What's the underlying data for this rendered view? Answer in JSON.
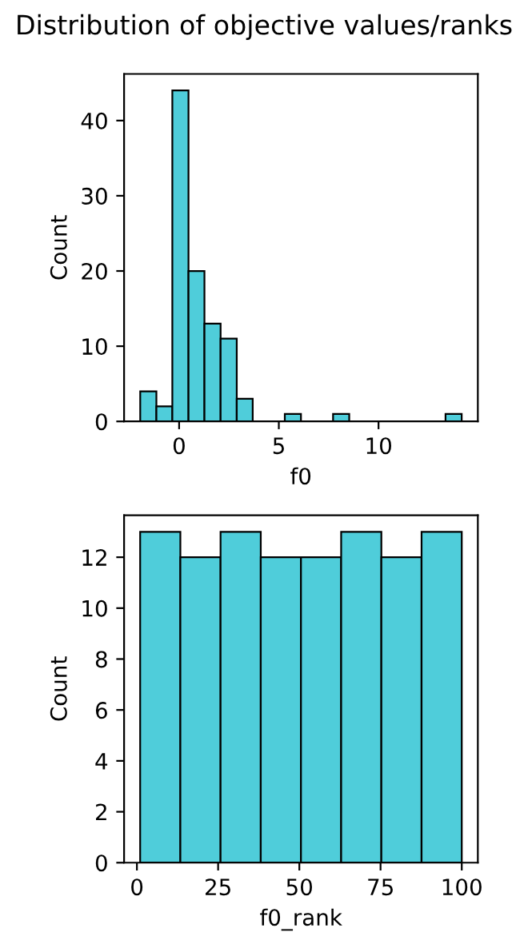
{
  "chart_data": [
    {
      "type": "histogram",
      "title": "Distribution of objective values/ranks",
      "xlabel": "f0",
      "ylabel": "Count",
      "color": "#4fcdda",
      "bins": [
        -1.95,
        -1.14,
        -0.34,
        0.47,
        1.27,
        2.08,
        2.89,
        3.69,
        4.5,
        5.3,
        6.11,
        6.92,
        7.72,
        8.53,
        9.33,
        10.14,
        10.95,
        11.75,
        12.56,
        13.36,
        14.17
      ],
      "values": [
        4,
        2,
        44,
        20,
        13,
        11,
        3,
        0,
        0,
        1,
        0,
        0,
        1,
        0,
        0,
        0,
        0,
        0,
        0,
        1
      ],
      "xlim": [
        -2.76,
        14.98
      ],
      "ylim": [
        0,
        46.2
      ],
      "xticks": [
        0,
        5,
        10
      ],
      "yticks": [
        0,
        10,
        20,
        30,
        40
      ],
      "grid": false,
      "legend": false
    },
    {
      "type": "histogram",
      "xlabel": "f0_rank",
      "ylabel": "Count",
      "color": "#4fcdda",
      "bins": [
        1,
        13.375,
        25.75,
        38.125,
        50.5,
        62.875,
        75.25,
        87.625,
        100
      ],
      "values": [
        13,
        12,
        13,
        12,
        12,
        13,
        12,
        13
      ],
      "xlim": [
        -3.95,
        104.95
      ],
      "ylim": [
        0,
        13.65
      ],
      "xticks": [
        0,
        25,
        50,
        75,
        100
      ],
      "yticks": [
        0,
        2,
        4,
        6,
        8,
        10,
        12
      ],
      "grid": false,
      "legend": false
    }
  ]
}
